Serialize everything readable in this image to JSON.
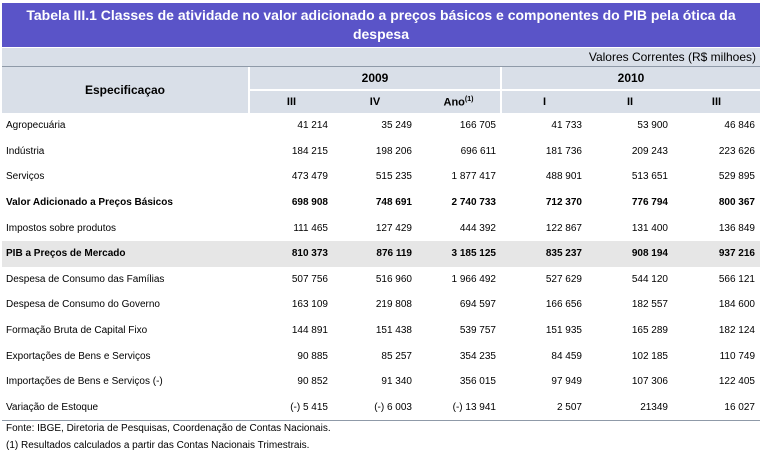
{
  "title": "Tabela III.1 Classes de atividade no valor adicionado a preços básicos e componentes do PIB pela ótica da despesa",
  "units": "Valores Correntes (R$ milhoes)",
  "header": {
    "spec": "Especificaçao",
    "year1": "2009",
    "year2": "2010",
    "cols": [
      "III",
      "IV",
      "Ano",
      "I",
      "II",
      "III"
    ],
    "ano_note": "(1)"
  },
  "rows": [
    {
      "label": "Agropecuária",
      "values": [
        "41 214",
        "35 249",
        "166 705",
        "41 733",
        "53 900",
        "46 846"
      ]
    },
    {
      "label": "Indústria",
      "values": [
        "184 215",
        "198 206",
        "696 611",
        "181 736",
        "209 243",
        "223 626"
      ]
    },
    {
      "label": "Serviços",
      "values": [
        "473 479",
        "515 235",
        "1 877 417",
        "488 901",
        "513 651",
        "529 895"
      ]
    },
    {
      "label": "Valor Adicionado a Preços Básicos",
      "values": [
        "698 908",
        "748 691",
        "2 740 733",
        "712 370",
        "776 794",
        "800 367"
      ]
    },
    {
      "label": "Impostos  sobre produtos",
      "values": [
        "111 465",
        "127 429",
        "444 392",
        "122 867",
        "131 400",
        "136 849"
      ]
    },
    {
      "label": "PIB a Preços de Mercado",
      "values": [
        "810 373",
        "876 119",
        "3 185 125",
        "835 237",
        "908 194",
        "937 216"
      ]
    },
    {
      "label": "Despesa de Consumo das Famílias",
      "values": [
        "507 756",
        "516 960",
        "1 966 492",
        "527 629",
        "544 120",
        "566 121"
      ]
    },
    {
      "label": "Despesa de Consumo do Governo",
      "values": [
        "163 109",
        "219 808",
        "694 597",
        "166 656",
        "182 557",
        "184 600"
      ]
    },
    {
      "label": "Formação Bruta de Capital Fixo",
      "values": [
        "144 891",
        "151 438",
        "539 757",
        "151 935",
        "165 289",
        "182 124"
      ]
    },
    {
      "label": "Exportações de Bens e Serviços",
      "values": [
        "90 885",
        "85 257",
        "354 235",
        "84 459",
        "102 185",
        "110 749"
      ]
    },
    {
      "label": "Importações de Bens e Serviços (-)",
      "values": [
        "90 852",
        "91 340",
        "356 015",
        "97 949",
        "107 306",
        "122 405"
      ]
    },
    {
      "label": "Variação de Estoque",
      "values": [
        "(-)  5 415",
        "(-)  6 003",
        "(-)  13 941",
        "2 507",
        "21349",
        "16 027"
      ]
    }
  ],
  "notes": [
    "Fonte: IBGE, Diretoria de Pesquisas, Coordenação de Contas Nacionais.",
    "(1) Resultados calculados a partir das Contas Nacionais Trimestrais."
  ]
}
